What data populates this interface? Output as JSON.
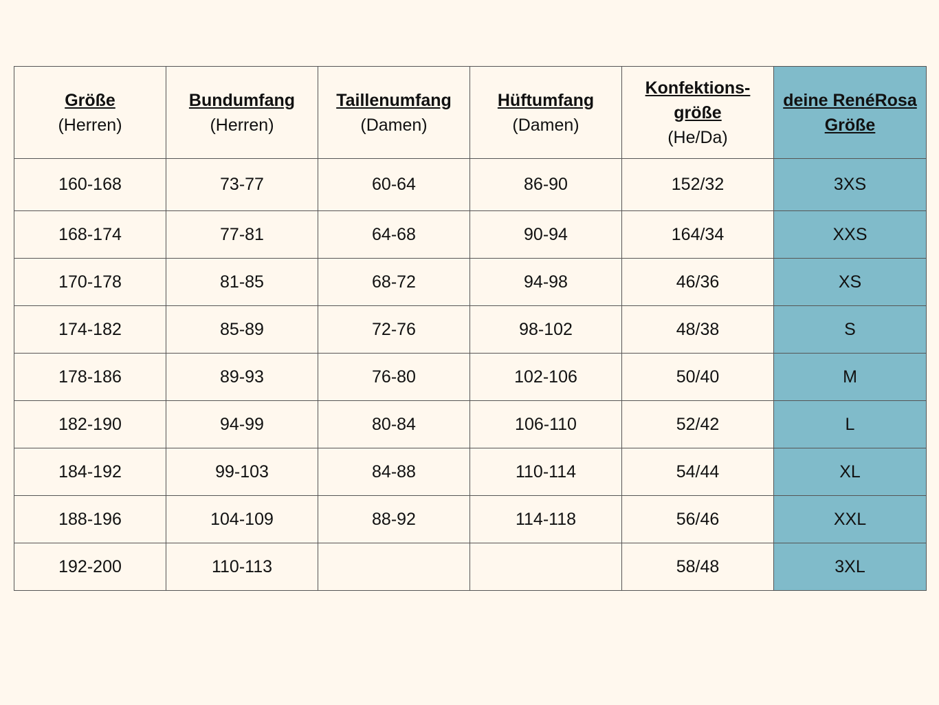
{
  "table": {
    "headers": [
      {
        "title": "Größe ",
        "title2": "",
        "sub": "(Herren)"
      },
      {
        "title": "Bundumfang",
        "title2": "",
        "sub": "(Herren)"
      },
      {
        "title": "Taillenumfang",
        "title2": "",
        "sub": "(Damen)"
      },
      {
        "title": "Hüftumfang",
        "title2": "",
        "sub": "(Damen)"
      },
      {
        "title": "Konfektions-",
        "title2": "größe",
        "sub": "(He/Da)"
      },
      {
        "title": "deine RenéRosa",
        "title2": "Größe",
        "sub": ""
      }
    ],
    "rows": [
      [
        "160-168",
        "73-77",
        "60-64",
        "86-90",
        "152/32",
        "3XS"
      ],
      [
        "168-174",
        "77-81",
        "64-68",
        "90-94",
        "164/34",
        "XXS"
      ],
      [
        "170-178",
        "81-85",
        "68-72",
        "94-98",
        "46/36",
        "XS"
      ],
      [
        "174-182",
        "85-89",
        "72-76",
        "98-102",
        "48/38",
        "S"
      ],
      [
        "178-186",
        "89-93",
        "76-80",
        "102-106",
        "50/40",
        "M"
      ],
      [
        "182-190",
        "94-99",
        "80-84",
        "106-110",
        "52/42",
        "L"
      ],
      [
        "184-192",
        "99-103",
        "84-88",
        "110-114",
        "54/44",
        "XL"
      ],
      [
        "188-196",
        "104-109",
        "88-92",
        "114-118",
        "56/46",
        "XXL"
      ],
      [
        "192-200",
        "110-113",
        "",
        "",
        "58/48",
        "3XL"
      ]
    ]
  },
  "colors": {
    "background": "#fff8ee",
    "highlight_column": "#80bbca",
    "border": "#555555"
  }
}
